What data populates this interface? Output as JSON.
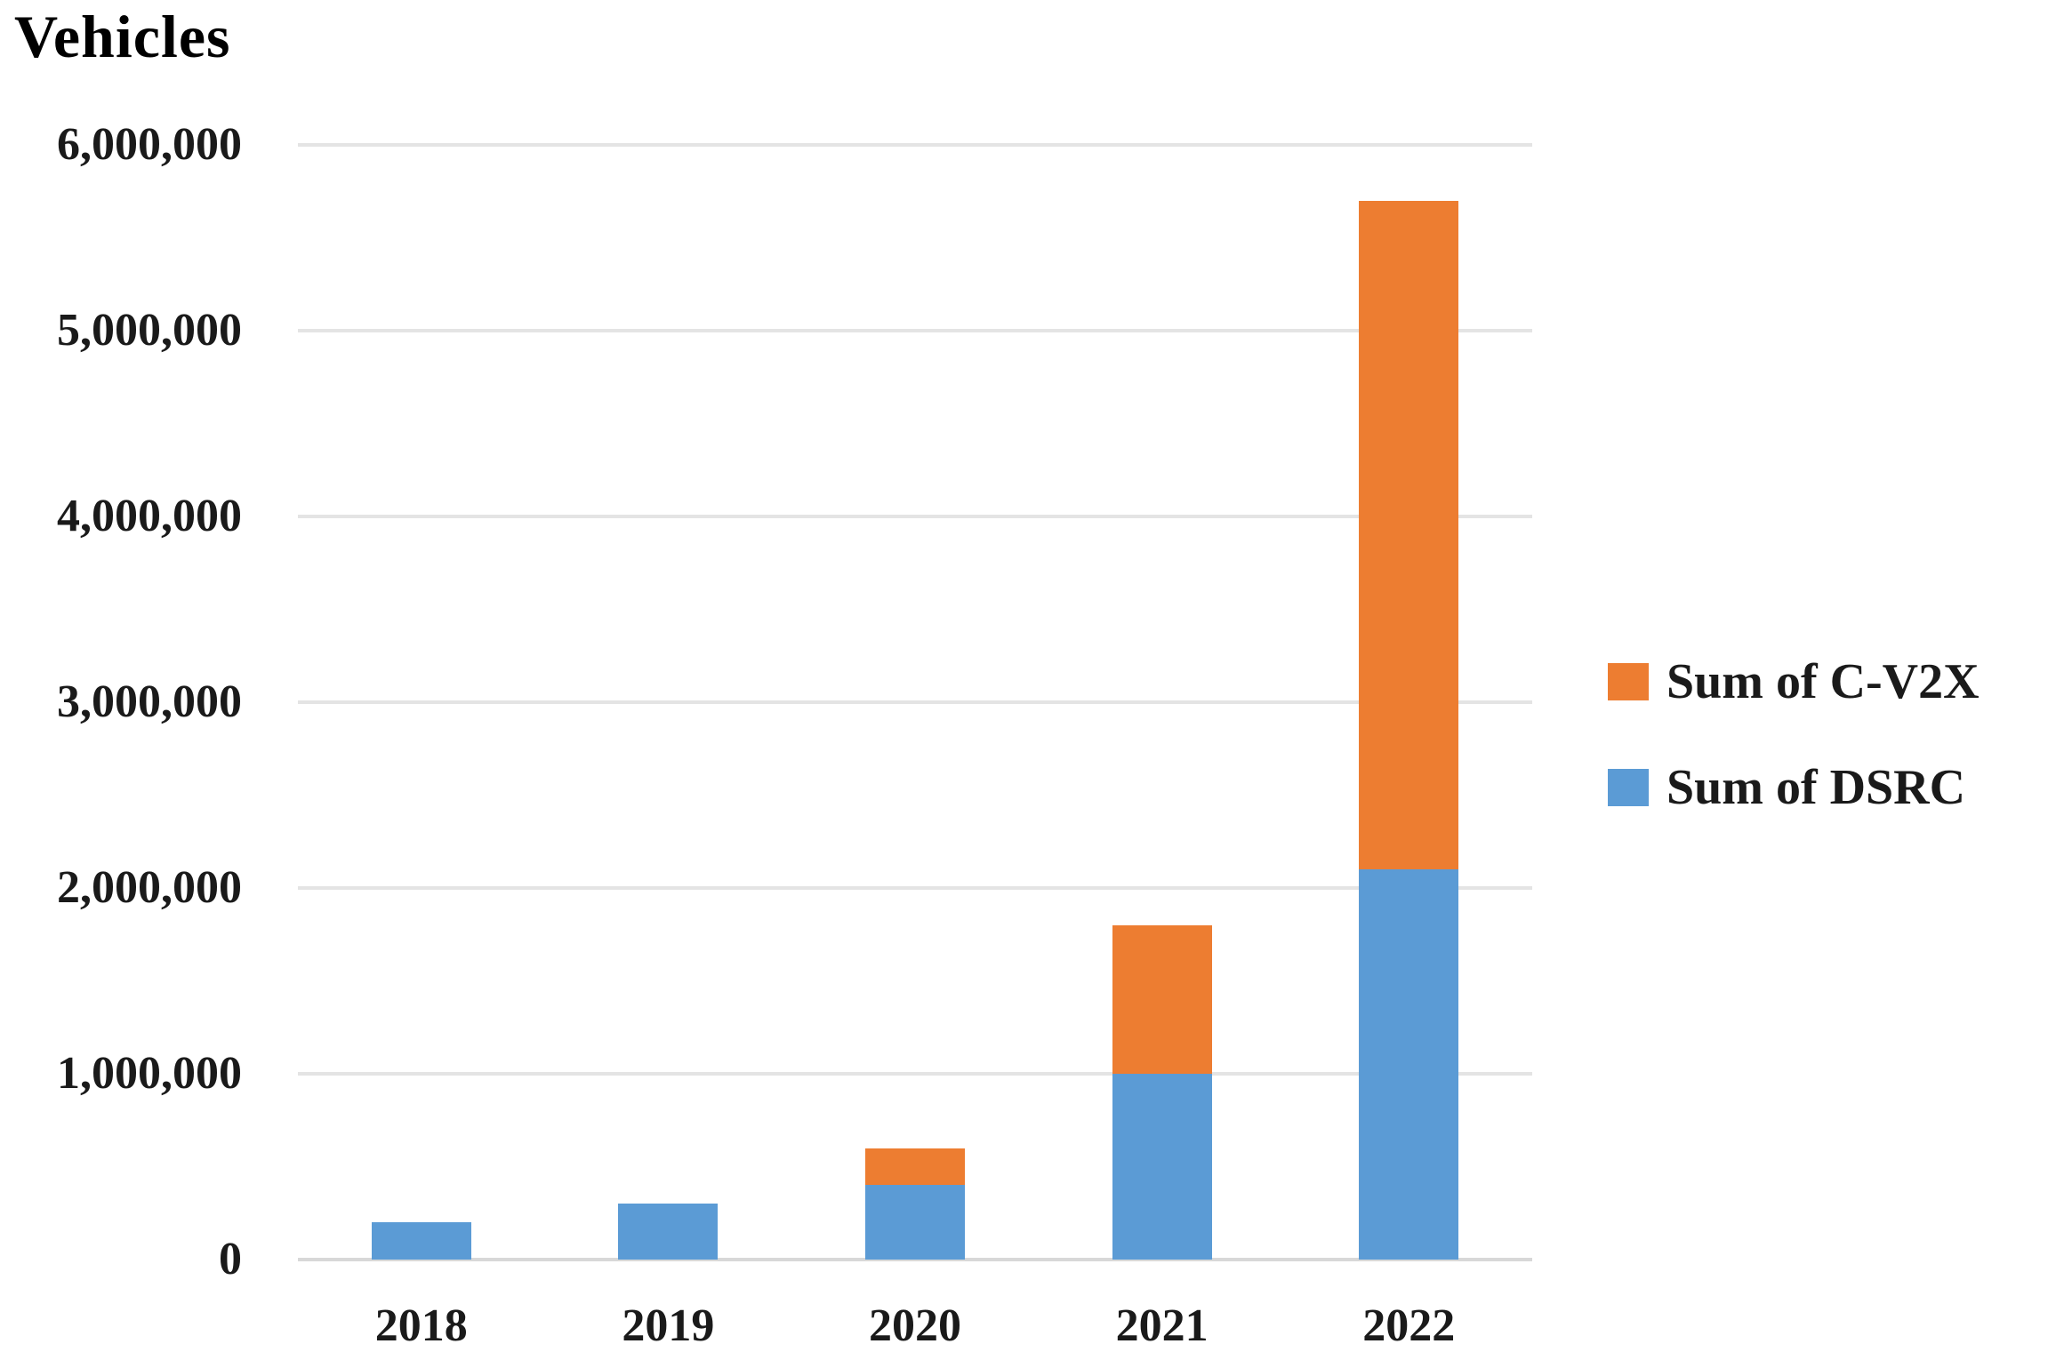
{
  "title": "Vehicles",
  "legend": {
    "entries": [
      {
        "label": "Sum of C-V2X",
        "color": "#ED7D31"
      },
      {
        "label": "Sum of DSRC",
        "color": "#5B9BD5"
      }
    ]
  },
  "chart_data": {
    "type": "bar",
    "stacked": true,
    "title": "Vehicles",
    "categories": [
      "2018",
      "2019",
      "2020",
      "2021",
      "2022"
    ],
    "series": [
      {
        "name": "Sum of DSRC",
        "color": "#5B9BD5",
        "values": [
          200000,
          300000,
          400000,
          1000000,
          2100000
        ]
      },
      {
        "name": "Sum of C-V2X",
        "color": "#ED7D31",
        "values": [
          0,
          0,
          200000,
          800000,
          3600000
        ]
      }
    ],
    "ylabel": "Vehicles",
    "ylim": [
      0,
      6000000
    ],
    "ytick_interval": 1000000,
    "ytick_labels": [
      "0",
      "1,000,000",
      "2,000,000",
      "3,000,000",
      "4,000,000",
      "5,000,000",
      "6,000,000"
    ],
    "grid": true,
    "legend_position": "right",
    "legend_order": [
      "Sum of C-V2X",
      "Sum of DSRC"
    ]
  },
  "colors": {
    "gridline": "#E4E4E4",
    "axis_line": "#D8D8D8",
    "text": "#1A1A1A"
  }
}
